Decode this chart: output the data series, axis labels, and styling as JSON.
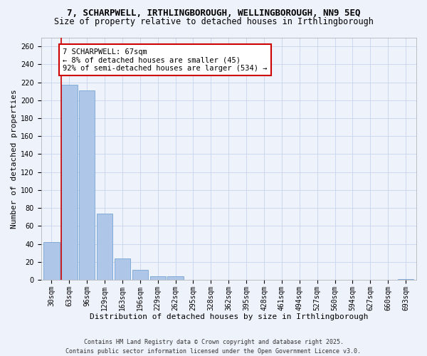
{
  "title": "7, SCHARPWELL, IRTHLINGBOROUGH, WELLINGBOROUGH, NN9 5EQ",
  "subtitle": "Size of property relative to detached houses in Irthlingborough",
  "xlabel": "Distribution of detached houses by size in Irthlingborough",
  "ylabel": "Number of detached properties",
  "bar_color": "#aec6e8",
  "bar_edge_color": "#6699cc",
  "categories": [
    "30sqm",
    "63sqm",
    "96sqm",
    "129sqm",
    "163sqm",
    "196sqm",
    "229sqm",
    "262sqm",
    "295sqm",
    "328sqm",
    "362sqm",
    "395sqm",
    "428sqm",
    "461sqm",
    "494sqm",
    "527sqm",
    "560sqm",
    "594sqm",
    "627sqm",
    "660sqm",
    "693sqm"
  ],
  "values": [
    42,
    217,
    211,
    74,
    24,
    11,
    4,
    4,
    0,
    0,
    0,
    0,
    0,
    0,
    0,
    0,
    0,
    0,
    0,
    0,
    1
  ],
  "ylim": [
    0,
    270
  ],
  "yticks": [
    0,
    20,
    40,
    60,
    80,
    100,
    120,
    140,
    160,
    180,
    200,
    220,
    240,
    260
  ],
  "vline_color": "#cc0000",
  "vline_position": 0.575,
  "annotation_title": "7 SCHARPWELL: 67sqm",
  "annotation_line1": "← 8% of detached houses are smaller (45)",
  "annotation_line2": "92% of semi-detached houses are larger (534) →",
  "annotation_box_color": "#ffffff",
  "annotation_border_color": "#cc0000",
  "footer1": "Contains HM Land Registry data © Crown copyright and database right 2025.",
  "footer2": "Contains public sector information licensed under the Open Government Licence v3.0.",
  "bg_color": "#eef2fb",
  "grid_color": "#c8d4ec",
  "title_fontsize": 9,
  "subtitle_fontsize": 8.5,
  "axis_label_fontsize": 8,
  "tick_fontsize": 7,
  "annotation_fontsize": 7.5,
  "footer_fontsize": 6
}
